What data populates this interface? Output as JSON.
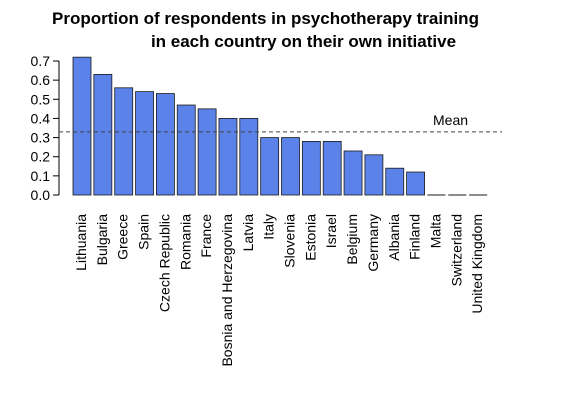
{
  "chart_data": {
    "type": "bar",
    "title_lines": [
      "Proportion of respondents in psychotherapy training",
      "in each country on their own initiative"
    ],
    "categories": [
      "Lithuania",
      "Bulgaria",
      "Greece",
      "Spain",
      "Czech Republic",
      "Romania",
      "France",
      "Bosnia and Herzegovina",
      "Latvia",
      "Italy",
      "Slovenia",
      "Estonia",
      "Israel",
      "Belgium",
      "Germany",
      "Albania",
      "Finland",
      "Malta",
      "Switzerland",
      "United Kingdom"
    ],
    "values": [
      0.72,
      0.63,
      0.56,
      0.54,
      0.53,
      0.47,
      0.45,
      0.4,
      0.4,
      0.3,
      0.3,
      0.28,
      0.28,
      0.23,
      0.21,
      0.14,
      0.12,
      0.0,
      0.0,
      0.0
    ],
    "ylim": [
      0,
      0.7
    ],
    "yticks": [
      "0.0",
      "0.1",
      "0.2",
      "0.3",
      "0.4",
      "0.5",
      "0.6",
      "0.7"
    ],
    "mean": {
      "label": "Mean",
      "value": 0.33
    },
    "bar_color": "#5b82e8",
    "bar_edge_color": "#1a1a1a",
    "grid": false
  }
}
